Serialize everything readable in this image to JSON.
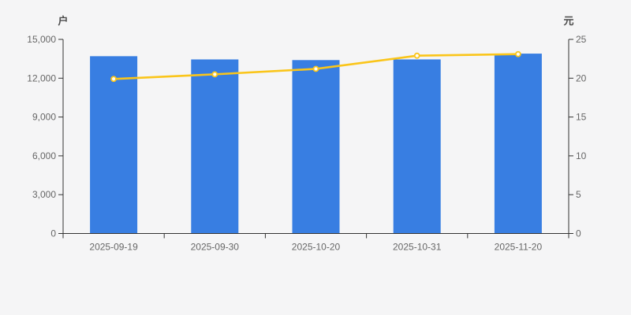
{
  "chart_data": {
    "type": "bar",
    "subtype": "dual-axis-bar-line",
    "title": "",
    "categories": [
      "2025-09-19",
      "2025-09-30",
      "2025-10-20",
      "2025-10-31",
      "2025-11-20"
    ],
    "series": [
      {
        "name": "bar-series",
        "type": "bar",
        "axis": "left",
        "values": [
          13700,
          13450,
          13400,
          13450,
          13900
        ],
        "color": "#387ee2"
      },
      {
        "name": "line-series",
        "type": "line",
        "axis": "right",
        "values": [
          19.9,
          20.5,
          21.2,
          22.9,
          23.1
        ],
        "color": "#fac51a",
        "marker_fill": "#fffdf5"
      }
    ],
    "left_axis": {
      "title": "户",
      "min": 0,
      "max": 15000,
      "tick_interval": 3000,
      "tick_values": [
        0,
        3000,
        6000,
        9000,
        12000,
        15000
      ],
      "tick_labels": [
        "0",
        "3,000",
        "6,000",
        "9,000",
        "12,000",
        "15,000"
      ]
    },
    "right_axis": {
      "title": "元",
      "min": 0,
      "max": 25,
      "tick_interval": 5,
      "tick_values": [
        0,
        5,
        10,
        15,
        20,
        25
      ],
      "tick_labels": [
        "0",
        "5",
        "10",
        "15",
        "20",
        "25"
      ]
    },
    "grid": false,
    "legend": false,
    "colors": {
      "background": "#f5f5f6",
      "axis_line": "#333333",
      "tick_label": "#666666",
      "axis_title": "#4c4c4c"
    }
  }
}
